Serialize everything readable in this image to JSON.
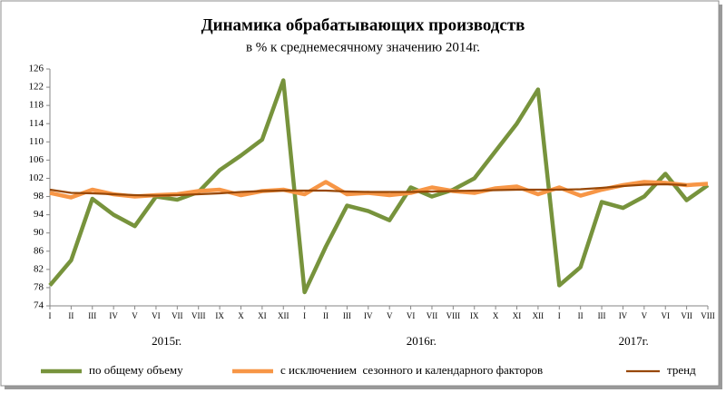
{
  "chart_data": {
    "type": "line",
    "title": "Динамика обрабатывающих производств",
    "subtitle": "в % к среднемесячному значению 2014г.",
    "categories": [
      "I",
      "II",
      "III",
      "IV",
      "V",
      "VI",
      "VII",
      "VIII",
      "IX",
      "X",
      "XI",
      "XII",
      "I",
      "II",
      "III",
      "IV",
      "V",
      "VI",
      "VII",
      "VIII",
      "IX",
      "X",
      "XI",
      "XII",
      "I",
      "II",
      "III",
      "IV",
      "V",
      "VI",
      "VII",
      "VIII"
    ],
    "year_labels": [
      "2015г.",
      "2016г.",
      "2017г."
    ],
    "ylim": [
      74,
      126
    ],
    "yticks": [
      74,
      78,
      82,
      86,
      90,
      94,
      98,
      102,
      106,
      110,
      114,
      118,
      122,
      126
    ],
    "grid": false,
    "series": [
      {
        "name": "по общему объему",
        "color": "#77933c",
        "values": [
          78.5,
          84,
          97.5,
          94,
          91.5,
          98,
          97.3,
          99,
          103.8,
          107,
          110.5,
          123.5,
          77,
          87,
          96,
          94.8,
          92.8,
          100,
          98,
          99.5,
          102,
          108,
          114,
          121.5,
          78.5,
          82.5,
          96.8,
          95.5,
          98,
          103,
          97.2,
          100.5
        ]
      },
      {
        "name": "с исключением  сезонного и календарного факторов",
        "color": "#f79646",
        "values": [
          98.8,
          97.8,
          99.5,
          98.5,
          98,
          98.3,
          98.5,
          99.2,
          99.5,
          98.3,
          99.2,
          99.5,
          98.5,
          101.2,
          98.5,
          98.8,
          98.3,
          98.8,
          100,
          99.2,
          98.8,
          99.8,
          100.2,
          98.5,
          100,
          98.2,
          99.5,
          100.5,
          101.2,
          101,
          100.5,
          100.8
        ]
      },
      {
        "name": "тренд",
        "color": "#984807",
        "values": [
          99.5,
          98.8,
          98.7,
          98.5,
          98.3,
          98.2,
          98.3,
          98.5,
          98.7,
          99,
          99.2,
          99.3,
          99.3,
          99.3,
          99.1,
          99,
          99,
          99,
          99.1,
          99.2,
          99.3,
          99.4,
          99.5,
          99.5,
          99.5,
          99.6,
          99.9,
          100.3,
          100.6,
          100.7,
          100.5,
          null
        ]
      }
    ]
  }
}
